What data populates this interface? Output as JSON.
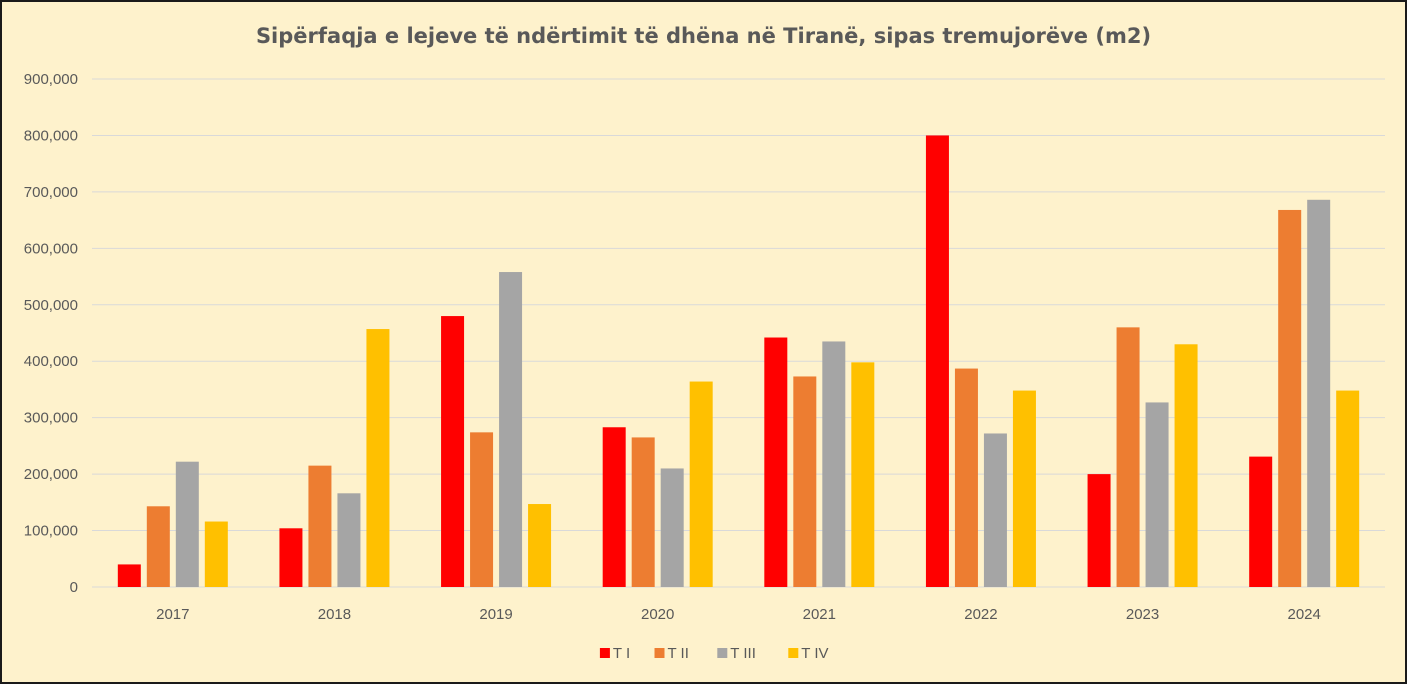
{
  "chart_data": {
    "type": "bar",
    "title": "Sipërfaqja e lejeve të ndërtimit të dhëna në Tiranë, sipas tremujorëve (m2)",
    "xlabel": "",
    "ylabel": "",
    "ylim": [
      0,
      900000
    ],
    "yticks": [
      0,
      100000,
      200000,
      300000,
      400000,
      500000,
      600000,
      700000,
      800000,
      900000
    ],
    "ytick_labels": [
      "0",
      "100,000",
      "200,000",
      "300,000",
      "400,000",
      "500,000",
      "600,000",
      "700,000",
      "800,000",
      "900,000"
    ],
    "grid": true,
    "legend_position": "bottom",
    "categories": [
      "2017",
      "2018",
      "2019",
      "2020",
      "2021",
      "2022",
      "2023",
      "2024"
    ],
    "series": [
      {
        "name": "T I",
        "color": "#ff0000",
        "values": [
          40000,
          104000,
          480000,
          283000,
          442000,
          800000,
          200000,
          231000
        ]
      },
      {
        "name": "T II",
        "color": "#ed7d31",
        "values": [
          143000,
          215000,
          274000,
          265000,
          373000,
          387000,
          460000,
          668000
        ]
      },
      {
        "name": "T III",
        "color": "#a5a5a5",
        "values": [
          222000,
          166000,
          558000,
          210000,
          435000,
          272000,
          327000,
          686000
        ]
      },
      {
        "name": "T IV",
        "color": "#ffc000",
        "values": [
          116000,
          457000,
          147000,
          364000,
          398000,
          348000,
          430000,
          348000
        ]
      }
    ]
  },
  "colors": {
    "background": "#fef2cc",
    "gridline": "#d9d9d9",
    "text": "#595959"
  }
}
